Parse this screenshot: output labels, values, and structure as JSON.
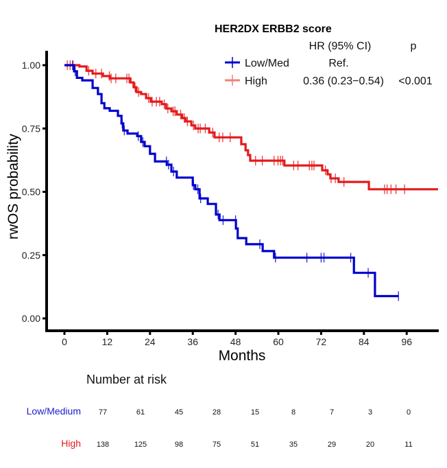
{
  "chart_data": {
    "type": "line",
    "subtype": "kaplan-meier",
    "title": "",
    "xlabel": "Months",
    "ylabel": "rwOS probability",
    "xlim": [
      -4,
      105
    ],
    "ylim": [
      -0.04,
      1.05
    ],
    "x_ticks": [
      0,
      12,
      24,
      36,
      48,
      60,
      72,
      84,
      96
    ],
    "y_ticks": [
      0.0,
      0.25,
      0.5,
      0.75,
      1.0
    ],
    "y_tick_labels": [
      "0.00",
      "0.25",
      "0.50",
      "0.75",
      "1.00"
    ],
    "grid": false,
    "legend": {
      "position": "top-right",
      "title": "HER2DX ERBB2 score",
      "col_hr": "HR (95% CI)",
      "col_p": "p",
      "entries": [
        {
          "name": "Low/Med",
          "hr": "Ref.",
          "p": "",
          "color": "#0000cc"
        },
        {
          "name": "High",
          "hr": "0.36 (0.23−0.54)",
          "p": "<0.001",
          "color": "#e41a1c"
        }
      ]
    },
    "series": [
      {
        "name": "Low/Med",
        "color": "#0000cc",
        "steps": [
          [
            0,
            1.0
          ],
          [
            2.7,
            0.976
          ],
          [
            3.5,
            0.95
          ],
          [
            5.0,
            0.94
          ],
          [
            7.9,
            0.91
          ],
          [
            9.4,
            0.886
          ],
          [
            10.4,
            0.85
          ],
          [
            11.2,
            0.83
          ],
          [
            12.7,
            0.82
          ],
          [
            15.0,
            0.8
          ],
          [
            16.0,
            0.77
          ],
          [
            16.5,
            0.742
          ],
          [
            17.7,
            0.73
          ],
          [
            20.4,
            0.72
          ],
          [
            21.5,
            0.697
          ],
          [
            22.5,
            0.68
          ],
          [
            24.0,
            0.65
          ],
          [
            25.4,
            0.62
          ],
          [
            28.7,
            0.607
          ],
          [
            30.0,
            0.58
          ],
          [
            31.5,
            0.556
          ],
          [
            36.0,
            0.526
          ],
          [
            36.7,
            0.51
          ],
          [
            37.9,
            0.474
          ],
          [
            40.2,
            0.452
          ],
          [
            42.5,
            0.41
          ],
          [
            43.5,
            0.388
          ],
          [
            48.1,
            0.355
          ],
          [
            48.6,
            0.317
          ],
          [
            51.0,
            0.293
          ],
          [
            55.6,
            0.266
          ],
          [
            58.8,
            0.24
          ],
          [
            81.2,
            0.18
          ],
          [
            87.1,
            0.088
          ]
        ],
        "end": 93.7,
        "censor": [
          2.3,
          3.0,
          16.2,
          16.8,
          20.7,
          22.0,
          28.6,
          29.2,
          30.6,
          36.2,
          37.4,
          38.2,
          43.1,
          44.5,
          48.0,
          54.8,
          59.2,
          68.0,
          72.0,
          72.8,
          80.3,
          85.2,
          93.7
        ]
      },
      {
        "name": "High",
        "color": "#e41a1c",
        "steps": [
          [
            0,
            1.0
          ],
          [
            4.2,
            0.995
          ],
          [
            6.2,
            0.978
          ],
          [
            7.9,
            0.967
          ],
          [
            10.8,
            0.957
          ],
          [
            12.7,
            0.948
          ],
          [
            18.5,
            0.932
          ],
          [
            19.4,
            0.913
          ],
          [
            20.2,
            0.894
          ],
          [
            21.5,
            0.886
          ],
          [
            22.9,
            0.87
          ],
          [
            24.2,
            0.856
          ],
          [
            27.3,
            0.846
          ],
          [
            28.5,
            0.829
          ],
          [
            30.0,
            0.818
          ],
          [
            31.5,
            0.805
          ],
          [
            33.0,
            0.791
          ],
          [
            34.0,
            0.778
          ],
          [
            35.6,
            0.762
          ],
          [
            36.7,
            0.75
          ],
          [
            40.6,
            0.734
          ],
          [
            42.1,
            0.715
          ],
          [
            49.6,
            0.688
          ],
          [
            50.8,
            0.664
          ],
          [
            51.5,
            0.645
          ],
          [
            52.1,
            0.623
          ],
          [
            61.7,
            0.604
          ],
          [
            72.3,
            0.585
          ],
          [
            73.8,
            0.569
          ],
          [
            74.6,
            0.553
          ],
          [
            76.9,
            0.539
          ],
          [
            85.4,
            0.51
          ]
        ],
        "end": 104.8,
        "censor": [
          0.8,
          1.6,
          2.4,
          6.8,
          8.8,
          10.4,
          12.6,
          13.1,
          14.4,
          17.5,
          18.1,
          19.8,
          20.8,
          23.6,
          24.6,
          25.8,
          26.7,
          28.0,
          29.0,
          30.5,
          31.0,
          32.6,
          33.6,
          34.5,
          36.2,
          37.5,
          38.1,
          39.5,
          41.6,
          43.4,
          44.4,
          46.5,
          53.6,
          55.5,
          58.8,
          59.9,
          60.6,
          61.2,
          64.3,
          65.5,
          68.7,
          69.4,
          70.0,
          73.2,
          74.8,
          76.0,
          78.4,
          89.8,
          90.5,
          91.6,
          93.0,
          95.4
        ]
      }
    ],
    "risk_table": {
      "title": "Number at risk",
      "times": [
        0,
        12,
        24,
        36,
        48,
        60,
        72,
        84,
        96
      ],
      "rows": [
        {
          "label": "Low/Medium",
          "color": "#1a1acc",
          "values": [
            77,
            61,
            45,
            28,
            15,
            8,
            7,
            3,
            0
          ]
        },
        {
          "label": "High",
          "color": "#e41a1c",
          "values": [
            138,
            125,
            98,
            75,
            51,
            35,
            29,
            20,
            11
          ]
        }
      ]
    }
  }
}
